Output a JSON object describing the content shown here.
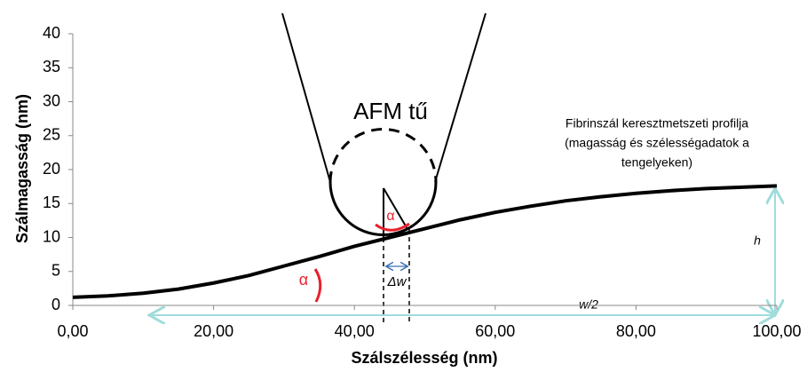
{
  "chart_data": {
    "type": "line",
    "xlabel": "Szálszélesség (nm)",
    "ylabel": "Szálmagasság (nm)",
    "annotations": {
      "tip": "AFM tű",
      "profile": [
        "Fibrinszál keresztmetszeti  profilja",
        "(magasság és szélességadatok  a",
        "tengelyeken)"
      ],
      "alpha_tip": "α",
      "alpha_curve": "α",
      "delta_w": "Δw",
      "half_width": "w/2",
      "height": "h"
    },
    "x": [
      0,
      5,
      10,
      15,
      20,
      25,
      30,
      35,
      40,
      45,
      50,
      55,
      60,
      65,
      70,
      75,
      80,
      85,
      90,
      95,
      100
    ],
    "series": [
      {
        "color": "#000000",
        "values": [
          1.2,
          1.4,
          1.8,
          2.4,
          3.3,
          4.4,
          5.8,
          7.2,
          8.7,
          10.0,
          11.3,
          12.6,
          13.7,
          14.6,
          15.4,
          16.0,
          16.5,
          16.9,
          17.2,
          17.4,
          17.6
        ]
      }
    ],
    "xlim": [
      0,
      100
    ],
    "xticks": [
      {
        "value": 0,
        "label": "0,00"
      },
      {
        "value": 20,
        "label": "20,00"
      },
      {
        "value": 40,
        "label": "40,00"
      },
      {
        "value": 60,
        "label": "60,00"
      },
      {
        "value": 80,
        "label": "80,00"
      },
      {
        "value": 100,
        "label": "100,00"
      }
    ],
    "ylim": [
      0,
      40
    ],
    "yticks": [
      0,
      5,
      10,
      15,
      20,
      25,
      30,
      35,
      40
    ],
    "grid": false
  }
}
